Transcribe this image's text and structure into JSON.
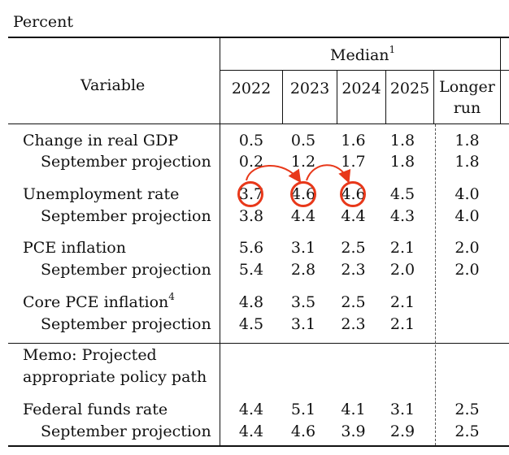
{
  "unit_label": "Percent",
  "header": {
    "variable_label": "Variable",
    "median_label": "Median",
    "median_footnote": "1",
    "years": [
      "2022",
      "2023",
      "2024",
      "2025"
    ],
    "longer_run_line1": "Longer",
    "longer_run_line2": "run"
  },
  "rows": [
    {
      "label": "Change in real GDP",
      "values": [
        "0.5",
        "0.5",
        "1.6",
        "1.8",
        "1.8"
      ]
    },
    {
      "label": "September projection",
      "values": [
        "0.2",
        "1.2",
        "1.7",
        "1.8",
        "1.8"
      ]
    },
    {
      "label": "Unemployment rate",
      "values": [
        "3.7",
        "4.6",
        "4.6",
        "4.5",
        "4.0"
      ]
    },
    {
      "label": "September projection",
      "values": [
        "3.8",
        "4.4",
        "4.4",
        "4.3",
        "4.0"
      ]
    },
    {
      "label": "PCE inflation",
      "values": [
        "5.6",
        "3.1",
        "2.5",
        "2.1",
        "2.0"
      ]
    },
    {
      "label": "September projection",
      "values": [
        "5.4",
        "2.8",
        "2.3",
        "2.0",
        "2.0"
      ]
    },
    {
      "label": "Core PCE inflation",
      "footnote": "4",
      "values": [
        "4.8",
        "3.5",
        "2.5",
        "2.1",
        ""
      ]
    },
    {
      "label": "September projection",
      "values": [
        "4.5",
        "3.1",
        "2.3",
        "2.1",
        ""
      ]
    }
  ],
  "memo": {
    "line1": "Memo: Projected",
    "line2": "appropriate policy path"
  },
  "fed_rows": [
    {
      "label": "Federal funds rate",
      "values": [
        "4.4",
        "5.1",
        "4.1",
        "3.1",
        "2.5"
      ]
    },
    {
      "label": "September projection",
      "values": [
        "4.4",
        "4.6",
        "3.9",
        "2.9",
        "2.5"
      ]
    }
  ],
  "annotation": {
    "color": "#e8381a",
    "highlighted_row": "Unemployment rate",
    "highlighted_years": [
      "2022",
      "2023",
      "2024"
    ]
  }
}
